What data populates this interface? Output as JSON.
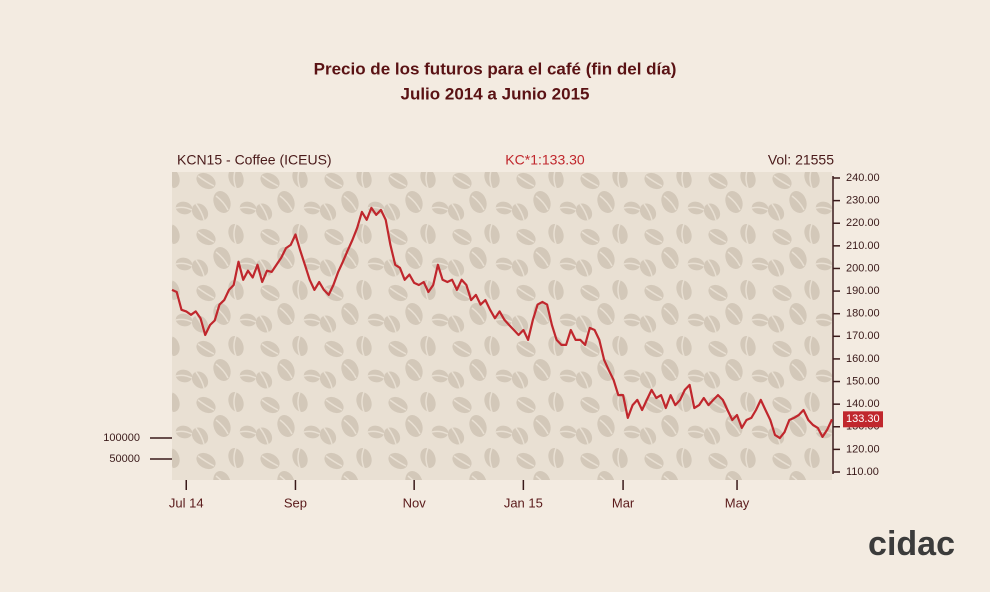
{
  "chart_data": {
    "type": "line",
    "title": "Precio de los futuros para el café (fin del día)",
    "subtitle": "Julio 2014 a Junio 2015",
    "annotations": [
      "KCN15 - Coffee (ICEUS)",
      "KC*1:133.30",
      "Vol: 21555"
    ],
    "categories": [
      null,
      null,
      null,
      "Jul 14",
      null,
      null,
      null,
      null,
      null,
      null,
      null,
      null,
      null,
      null,
      null,
      null,
      null,
      null,
      null,
      null,
      null,
      null,
      null,
      null,
      null,
      null,
      "Sep",
      null,
      null,
      null,
      null,
      null,
      null,
      null,
      null,
      null,
      null,
      null,
      null,
      null,
      null,
      null,
      null,
      null,
      null,
      null,
      null,
      null,
      null,
      null,
      null,
      "Nov",
      null,
      null,
      null,
      null,
      null,
      null,
      null,
      null,
      null,
      null,
      null,
      null,
      null,
      null,
      null,
      null,
      null,
      null,
      null,
      null,
      null,
      null,
      "Jan 15",
      null,
      null,
      null,
      null,
      null,
      null,
      null,
      null,
      null,
      null,
      null,
      null,
      null,
      null,
      null,
      null,
      null,
      null,
      null,
      null,
      "Mar",
      null,
      null,
      null,
      null,
      null,
      null,
      null,
      null,
      null,
      null,
      null,
      null,
      null,
      null,
      null,
      null,
      null,
      null,
      null,
      null,
      null,
      null,
      null,
      "May",
      null,
      null,
      null,
      null,
      null,
      null,
      null,
      null,
      null,
      null,
      null,
      null,
      null,
      null,
      null,
      null,
      null,
      null,
      null,
      null
    ],
    "values": [
      190.5,
      189.6,
      181.7,
      181,
      179.5,
      181,
      178,
      170.6,
      175,
      177,
      184,
      186,
      190.5,
      192.7,
      203,
      195,
      199,
      196,
      201.6,
      194,
      199,
      198.5,
      201.6,
      204.7,
      209,
      210.4,
      215,
      208,
      201.6,
      195,
      190.5,
      194,
      190.5,
      188.3,
      192.7,
      198.5,
      203,
      208,
      212.6,
      218,
      225,
      221.5,
      226.8,
      223.7,
      225.9,
      221.5,
      210.4,
      201.6,
      200.3,
      195,
      197.3,
      193.6,
      192.7,
      194,
      189.6,
      192.7,
      201.6,
      195,
      194,
      195,
      190.5,
      195,
      192.7,
      186,
      188.3,
      184,
      186,
      181.7,
      178,
      181,
      177.3,
      175,
      172.8,
      170.6,
      172.8,
      168.4,
      177.3,
      184,
      185.2,
      184,
      175,
      168.4,
      166.2,
      166.2,
      172.8,
      168.4,
      168.4,
      166.2,
      173.7,
      172.8,
      168.4,
      159.6,
      155,
      150.7,
      144,
      144,
      133.9,
      139.6,
      141.9,
      137.4,
      141.9,
      146.3,
      142.7,
      144,
      138.3,
      144,
      139.6,
      141.9,
      146.3,
      148.5,
      138.3,
      139.6,
      142.7,
      139.6,
      141.9,
      144,
      141.9,
      137.4,
      133,
      135.2,
      129.5,
      133,
      133.9,
      137.4,
      141.9,
      137.4,
      133,
      126.4,
      125,
      127.6,
      133,
      133.9,
      135.2,
      137.4,
      133,
      130.8,
      129.5,
      125.5,
      128.8,
      133.3
    ],
    "value_labels": [
      null,
      null,
      null,
      null,
      null,
      null,
      null,
      null,
      null,
      null,
      null,
      null,
      null,
      null,
      null,
      null,
      null,
      null,
      null,
      null,
      null,
      null,
      null,
      null,
      null,
      null,
      null,
      null,
      null,
      null,
      null,
      null,
      null,
      null,
      null,
      null,
      null,
      null,
      null,
      null,
      null,
      null,
      null,
      null,
      null,
      null,
      null,
      null,
      null,
      null,
      null,
      null,
      null,
      null,
      null,
      null,
      null,
      null,
      null,
      null,
      null,
      null,
      null,
      null,
      null,
      null,
      null,
      null,
      null,
      null,
      null,
      null,
      null,
      null,
      null,
      null,
      null,
      null,
      null,
      null,
      null,
      null,
      null,
      null,
      null,
      null,
      null,
      null,
      null,
      null,
      null,
      null,
      null,
      null,
      null,
      null,
      null,
      null,
      null,
      null,
      null,
      null,
      null,
      null,
      null,
      null,
      null,
      null,
      null,
      null,
      null,
      null,
      null,
      null,
      null,
      null,
      null,
      null,
      null,
      null,
      null,
      null,
      null,
      null,
      null,
      null,
      null,
      null,
      null,
      null,
      null,
      null,
      null,
      null,
      null,
      null,
      null,
      null,
      null,
      "133.30"
    ],
    "color": "#c0272d",
    "ylim": [
      110,
      240
    ],
    "yticks": [
      {
        "value": 110,
        "label": "110.00"
      },
      {
        "value": 120,
        "label": "120.00"
      },
      {
        "value": 130,
        "label": "130.00"
      },
      {
        "value": 140,
        "label": "140.00"
      },
      {
        "value": 150,
        "label": "150.00"
      },
      {
        "value": 160,
        "label": "160.00"
      },
      {
        "value": 170,
        "label": "170.00"
      },
      {
        "value": 180,
        "label": "180.00"
      },
      {
        "value": 190,
        "label": "190.00"
      },
      {
        "value": 200,
        "label": "200.00"
      },
      {
        "value": 210,
        "label": "210.00"
      },
      {
        "value": 220,
        "label": "220.00"
      },
      {
        "value": 230,
        "label": "230.00"
      },
      {
        "value": 240,
        "label": "240.00"
      }
    ],
    "y2lim": [
      0,
      720000
    ],
    "y2ticks": [
      50000,
      100000
    ],
    "logo": "cidac"
  }
}
